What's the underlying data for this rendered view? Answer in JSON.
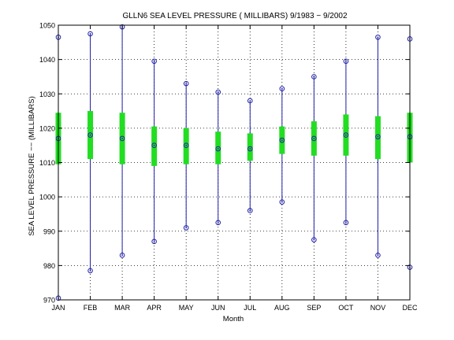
{
  "chart_data": {
    "type": "box",
    "title": "GLLN6  SEA LEVEL PRESSURE ( MILLIBARS) 9/1983 − 9/2002",
    "xlabel": "Month",
    "ylabel": "SEA LEVEL PRESSURE −− (MILLIBARS)",
    "categories": [
      "JAN",
      "FEB",
      "MAR",
      "APR",
      "MAY",
      "JUN",
      "JUL",
      "AUG",
      "SEP",
      "OCT",
      "NOV",
      "DEC"
    ],
    "ylim": [
      970,
      1050
    ],
    "yticks": [
      970,
      980,
      990,
      1000,
      1010,
      1020,
      1030,
      1040,
      1050
    ],
    "grid": true,
    "series": [
      {
        "stat": "max",
        "values": [
          1046.5,
          1047.5,
          1049.5,
          1039.5,
          1033.0,
          1030.5,
          1028.0,
          1031.5,
          1035.0,
          1039.5,
          1046.5,
          1046.0
        ]
      },
      {
        "stat": "upper",
        "values": [
          1024.5,
          1025.0,
          1024.5,
          1020.5,
          1020.0,
          1019.0,
          1018.5,
          1020.5,
          1022.0,
          1024.0,
          1023.5,
          1024.5
        ]
      },
      {
        "stat": "mean",
        "values": [
          1017.0,
          1018.0,
          1017.0,
          1015.0,
          1015.0,
          1014.0,
          1014.0,
          1016.5,
          1017.0,
          1018.0,
          1017.5,
          1017.5
        ]
      },
      {
        "stat": "lower",
        "values": [
          1009.5,
          1011.0,
          1009.5,
          1009.0,
          1009.5,
          1009.5,
          1010.5,
          1012.5,
          1012.0,
          1012.0,
          1011.0,
          1010.0
        ]
      },
      {
        "stat": "min",
        "values": [
          970.5,
          978.5,
          983.0,
          987.0,
          991.0,
          992.5,
          996.0,
          998.5,
          987.5,
          992.5,
          983.0,
          979.5
        ]
      }
    ],
    "colors": {
      "whisker": "#1f1fa8",
      "box": "#22dd22",
      "marker": "#1f1fa8",
      "grid": "#000000"
    }
  }
}
